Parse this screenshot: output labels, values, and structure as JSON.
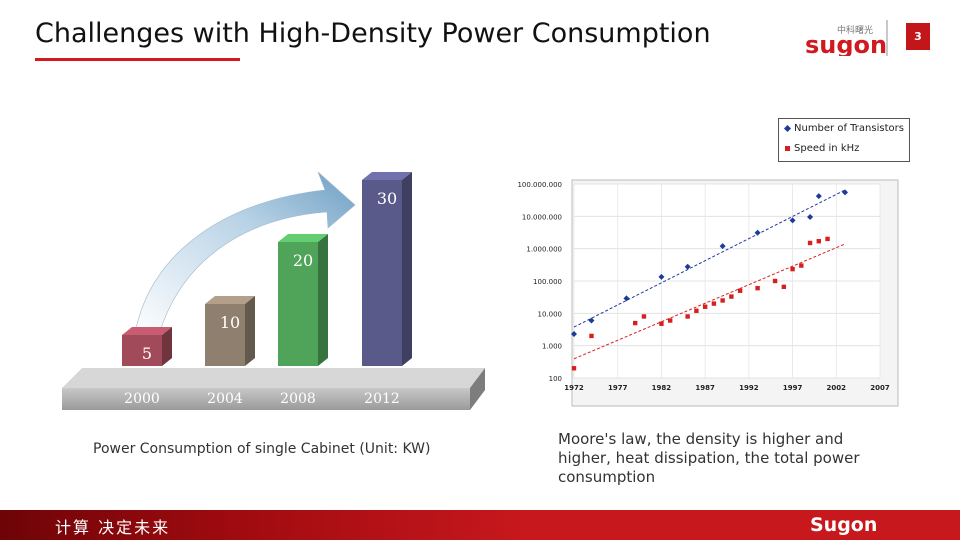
{
  "header": {
    "title": "Challenges with High-Density Power Consumption",
    "page_number": "3",
    "logo_cn": "中科曙光",
    "logo_en": "sugon",
    "brand_color": "#d11a1f"
  },
  "bar_chart": {
    "caption": "Power Consumption of single Cabinet (Unit: KW)",
    "chart_data": {
      "type": "bar",
      "categories": [
        "2000",
        "2004",
        "2008",
        "2012"
      ],
      "values": [
        5,
        10,
        20,
        30
      ],
      "colors": [
        "#a04a5a",
        "#8f7f6e",
        "#4fa45a",
        "#5a5a8a"
      ],
      "title": "",
      "xlabel": "",
      "ylabel": ""
    }
  },
  "moore_chart": {
    "caption": "Moore's law, the density is higher and higher, heat dissipation, the total power consumption",
    "legend": [
      {
        "label": "Number of Transistors",
        "color": "#1f3b9a",
        "marker": "diamond"
      },
      {
        "label": "Speed in kHz",
        "color": "#d81f1f",
        "marker": "square"
      }
    ],
    "chart_data": {
      "type": "scatter",
      "y_scale": "log",
      "xlim": [
        1972,
        2007
      ],
      "ylim": [
        100,
        100000000
      ],
      "x_ticks": [
        "1972",
        "1977",
        "1982",
        "1987",
        "1992",
        "1997",
        "2002",
        "2007"
      ],
      "y_ticks": [
        "100",
        "1.000",
        "10.000",
        "100.000",
        "1.000.000",
        "10.000.000",
        "100.000.000"
      ],
      "series": [
        {
          "name": "Number of Transistors",
          "x": [
            1972,
            1974,
            1978,
            1982,
            1985,
            1989,
            1993,
            1997,
            1999,
            2000,
            2003
          ],
          "y": [
            2300,
            6000,
            29000,
            134000,
            275000,
            1200000,
            3100000,
            7500000,
            9500000,
            42000000,
            55000000
          ]
        },
        {
          "name": "Speed in kHz",
          "x": [
            1972,
            1974,
            1979,
            1980,
            1982,
            1983,
            1985,
            1986,
            1987,
            1988,
            1989,
            1990,
            1991,
            1993,
            1995,
            1996,
            1997,
            1998,
            1999,
            2000,
            2001
          ],
          "y": [
            200,
            2000,
            5000,
            8000,
            4770,
            6000,
            8000,
            12000,
            16000,
            20000,
            25000,
            33000,
            50000,
            60000,
            100000,
            66000,
            233000,
            300000,
            1500000,
            1700000,
            2000000
          ]
        }
      ]
    }
  },
  "footer": {
    "slogan": "计算 决定未来",
    "logo": "Sugon"
  }
}
